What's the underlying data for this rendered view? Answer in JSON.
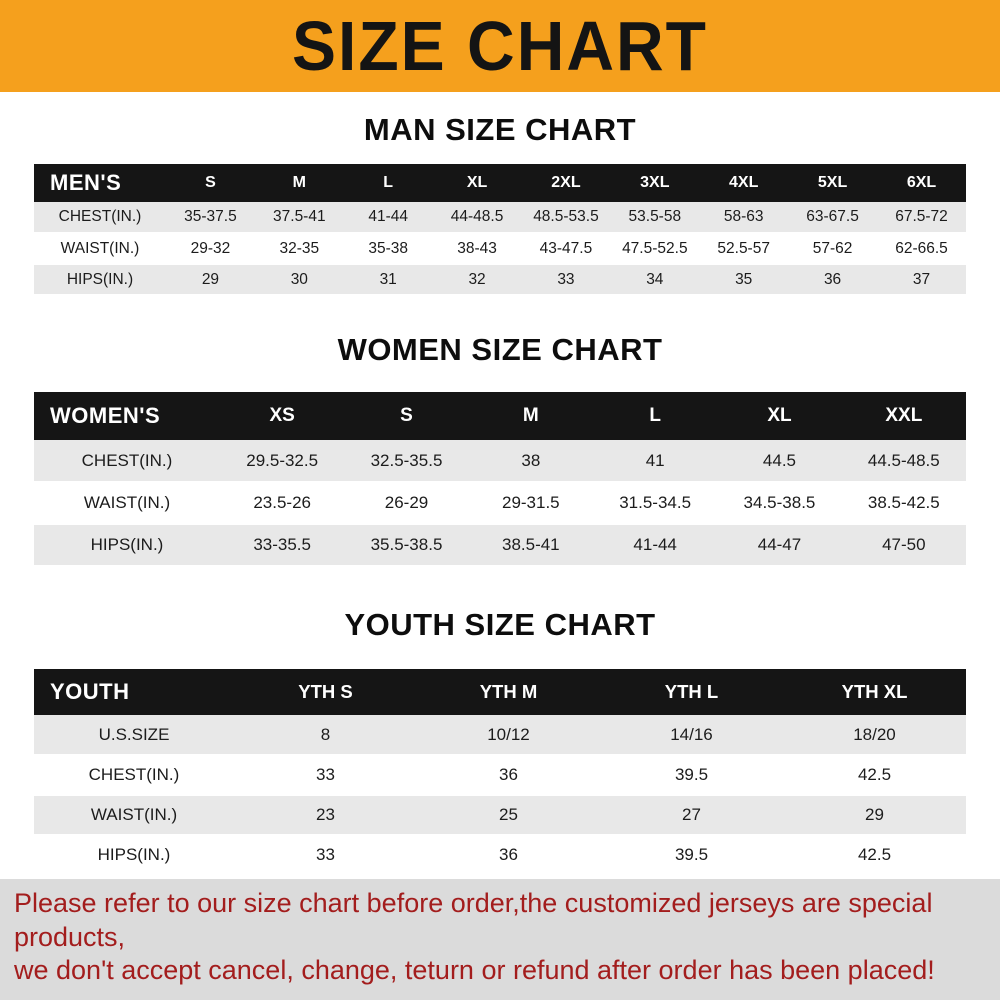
{
  "banner": {
    "title": "SIZE CHART"
  },
  "chart_data": [
    {
      "type": "table",
      "title": "MAN SIZE CHART",
      "header_label": "MEN'S",
      "columns": [
        "S",
        "M",
        "L",
        "XL",
        "2XL",
        "3XL",
        "4XL",
        "5XL",
        "6XL"
      ],
      "rows": [
        {
          "label": "CHEST(IN.)",
          "values": [
            "35-37.5",
            "37.5-41",
            "41-44",
            "44-48.5",
            "48.5-53.5",
            "53.5-58",
            "58-63",
            "63-67.5",
            "67.5-72"
          ]
        },
        {
          "label": "WAIST(IN.)",
          "values": [
            "29-32",
            "32-35",
            "35-38",
            "38-43",
            "43-47.5",
            "47.5-52.5",
            "52.5-57",
            "57-62",
            "62-66.5"
          ]
        },
        {
          "label": "HIPS(IN.)",
          "values": [
            "29",
            "30",
            "31",
            "32",
            "33",
            "34",
            "35",
            "36",
            "37"
          ]
        }
      ]
    },
    {
      "type": "table",
      "title": "WOMEN SIZE CHART",
      "header_label": "WOMEN'S",
      "columns": [
        "XS",
        "S",
        "M",
        "L",
        "XL",
        "XXL"
      ],
      "rows": [
        {
          "label": "CHEST(IN.)",
          "values": [
            "29.5-32.5",
            "32.5-35.5",
            "38",
            "41",
            "44.5",
            "44.5-48.5"
          ]
        },
        {
          "label": "WAIST(IN.)",
          "values": [
            "23.5-26",
            "26-29",
            "29-31.5",
            "31.5-34.5",
            "34.5-38.5",
            "38.5-42.5"
          ]
        },
        {
          "label": "HIPS(IN.)",
          "values": [
            "33-35.5",
            "35.5-38.5",
            "38.5-41",
            "41-44",
            "44-47",
            "47-50"
          ]
        }
      ]
    },
    {
      "type": "table",
      "title": "YOUTH SIZE CHART",
      "header_label": "YOUTH",
      "columns": [
        "YTH S",
        "YTH M",
        "YTH L",
        "YTH XL"
      ],
      "rows": [
        {
          "label": "U.S.SIZE",
          "values": [
            "8",
            "10/12",
            "14/16",
            "18/20"
          ]
        },
        {
          "label": "CHEST(IN.)",
          "values": [
            "33",
            "36",
            "39.5",
            "42.5"
          ]
        },
        {
          "label": "WAIST(IN.)",
          "values": [
            "23",
            "25",
            "27",
            "29"
          ]
        },
        {
          "label": "HIPS(IN.)",
          "values": [
            "33",
            "36",
            "39.5",
            "42.5"
          ]
        }
      ]
    }
  ],
  "footer": {
    "line1": "Please refer to our size chart before order,the customized jerseys are special products,",
    "line2": "we don't accept cancel, change, teturn or refund after order has been placed!"
  },
  "colors": {
    "banner_bg": "#F5A01D",
    "banner_text": "#141414",
    "header_bg": "#151515",
    "header_text": "#FFFFFF",
    "row_alt_bg": "#E8E8E8",
    "footer_bg": "#DBDBDB",
    "footer_text": "#A31D1D"
  }
}
